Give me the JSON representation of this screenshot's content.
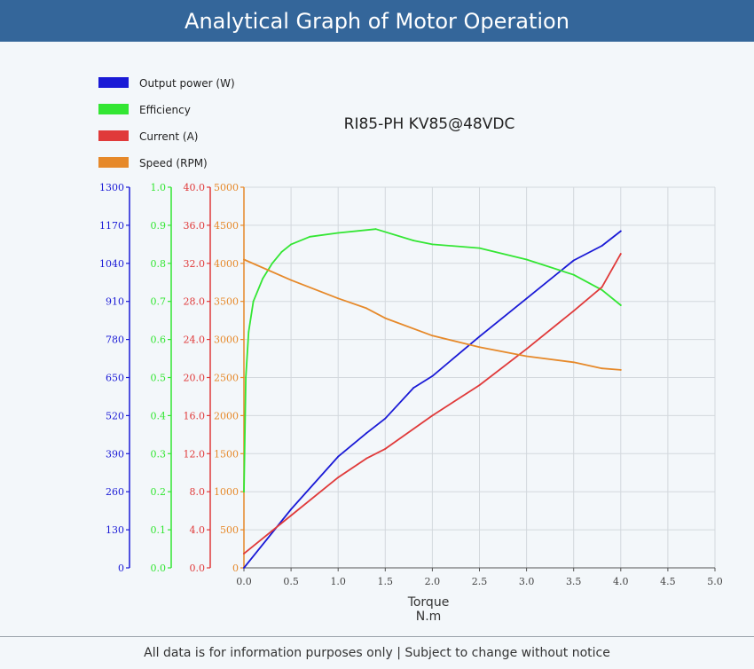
{
  "page": {
    "title": "Analytical Graph of Motor Operation",
    "footer": "All data is for information purposes only | Subject to change without notice"
  },
  "colors": {
    "header_bg": "#34669a",
    "power": "#1a1ad6",
    "efficiency": "#33e633",
    "current": "#e03a3a",
    "speed": "#e6892a",
    "grid": "#d3d8dd"
  },
  "chart_data": {
    "type": "line",
    "title": "RI85-PH KV85@48VDC",
    "xlabel": [
      "Torque",
      "N.m"
    ],
    "xlim": [
      0,
      5
    ],
    "x_ticks": [
      "0.0",
      "0.5",
      "1.0",
      "1.5",
      "2.0",
      "2.5",
      "3.0",
      "3.5",
      "4.0",
      "4.5",
      "5.0"
    ],
    "grid": true,
    "legend_position": "top-left",
    "axes": [
      {
        "id": "power",
        "color": "#1a1ad6",
        "ylim": [
          0,
          1300
        ],
        "ticks": [
          "0",
          "130",
          "260",
          "390",
          "520",
          "650",
          "780",
          "910",
          "1040",
          "1170",
          "1300"
        ]
      },
      {
        "id": "efficiency",
        "color": "#33e633",
        "ylim": [
          0,
          1
        ],
        "ticks": [
          "0.0",
          "0.1",
          "0.2",
          "0.3",
          "0.4",
          "0.5",
          "0.6",
          "0.7",
          "0.8",
          "0.9",
          "1.0"
        ]
      },
      {
        "id": "current",
        "color": "#e03a3a",
        "ylim": [
          0,
          40
        ],
        "ticks": [
          "0.0",
          "4.0",
          "8.0",
          "12.0",
          "16.0",
          "20.0",
          "24.0",
          "28.0",
          "32.0",
          "36.0",
          "40.0"
        ]
      },
      {
        "id": "speed",
        "color": "#e6892a",
        "ylim": [
          0,
          5000
        ],
        "ticks": [
          "0",
          "500",
          "1000",
          "1500",
          "2000",
          "2500",
          "3000",
          "3500",
          "4000",
          "4500",
          "5000"
        ]
      }
    ],
    "series": [
      {
        "name": "Output power (W)",
        "axis": "power",
        "color": "#1a1ad6",
        "x": [
          0,
          0.5,
          1.0,
          1.3,
          1.5,
          1.8,
          2.0,
          2.5,
          3.0,
          3.5,
          3.8,
          4.0
        ],
        "y": [
          0,
          200,
          380,
          460,
          510,
          615,
          655,
          790,
          920,
          1050,
          1100,
          1150
        ]
      },
      {
        "name": "Efficiency",
        "axis": "efficiency",
        "color": "#33e633",
        "x": [
          0,
          0.02,
          0.05,
          0.1,
          0.2,
          0.3,
          0.4,
          0.5,
          0.7,
          1.0,
          1.4,
          1.8,
          2.0,
          2.5,
          3.0,
          3.5,
          3.8,
          4.0
        ],
        "y": [
          0.2,
          0.5,
          0.62,
          0.7,
          0.76,
          0.8,
          0.83,
          0.85,
          0.87,
          0.88,
          0.89,
          0.86,
          0.85,
          0.84,
          0.81,
          0.77,
          0.73,
          0.69
        ]
      },
      {
        "name": "Current (A)",
        "axis": "current",
        "color": "#e03a3a",
        "x": [
          0,
          0.5,
          1.0,
          1.3,
          1.5,
          2.0,
          2.5,
          3.0,
          3.5,
          3.8,
          4.0
        ],
        "y": [
          1.5,
          5.5,
          9.5,
          11.5,
          12.5,
          16.0,
          19.2,
          23.0,
          27.0,
          29.5,
          33.0
        ]
      },
      {
        "name": "Speed (RPM)",
        "axis": "speed",
        "color": "#e6892a",
        "x": [
          0,
          0.5,
          1.0,
          1.3,
          1.5,
          2.0,
          2.5,
          3.0,
          3.5,
          3.8,
          4.0
        ],
        "y": [
          4050,
          3780,
          3540,
          3410,
          3280,
          3050,
          2900,
          2780,
          2700,
          2620,
          2600
        ]
      }
    ]
  }
}
